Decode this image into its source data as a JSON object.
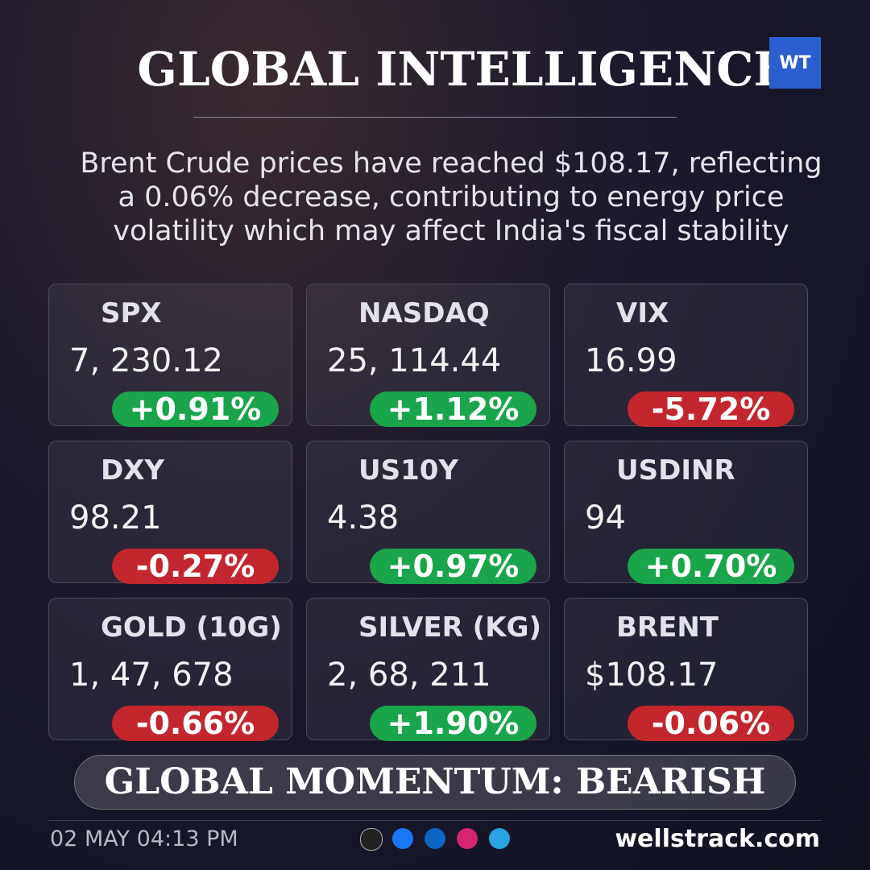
{
  "header": {
    "title": "GLOBAL INTELLIGENCE",
    "logo": "WT"
  },
  "summary": [
    "Brent Crude prices have reached $108.17, reflecting",
    "a 0.06% decrease, contributing to energy price",
    "volatility which may affect India's fiscal stability"
  ],
  "cards": [
    {
      "name": "SPX",
      "value": "7, 230.12",
      "change": "+0.91%",
      "color": "#1aa54b"
    },
    {
      "name": "NASDAQ",
      "value": "25, 114.44",
      "change": "+1.12%",
      "color": "#1aa54b"
    },
    {
      "name": "VIX",
      "value": "16.99",
      "change": "-5.72%",
      "color": "#c3272d"
    },
    {
      "name": "DXY",
      "value": "98.21",
      "change": "-0.27%",
      "color": "#c3272d"
    },
    {
      "name": "US10Y",
      "value": "4.38",
      "change": "+0.97%",
      "color": "#1aa54b"
    },
    {
      "name": "USDINR",
      "value": "94",
      "change": "+0.70%",
      "color": "#1aa54b"
    },
    {
      "name": "GOLD (10G)",
      "value": "1, 47, 678",
      "change": "-0.66%",
      "color": "#c3272d"
    },
    {
      "name": "SILVER (KG)",
      "value": "2, 68, 211",
      "change": "+1.90%",
      "color": "#1aa54b"
    },
    {
      "name": "BRENT",
      "value": "$108.17",
      "change": "-0.06%",
      "color": "#c3272d"
    }
  ],
  "momentum": "GLOBAL MOMENTUM: BEARISH",
  "footer": {
    "timestamp": "02 MAY 04:13 PM",
    "website": "wellstrack.com"
  }
}
